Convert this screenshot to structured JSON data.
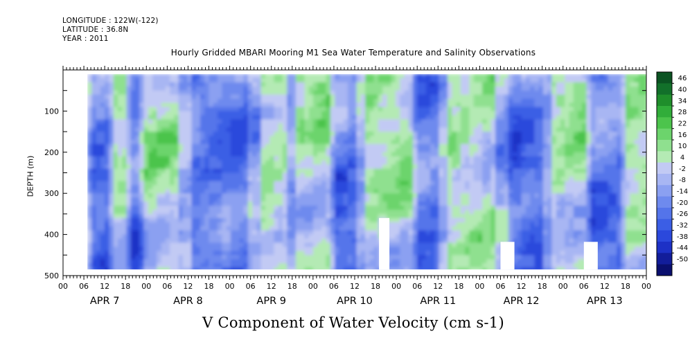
{
  "header": {
    "longitude": "LONGITUDE : 122W(-122)",
    "latitude": "LATITUDE : 36.8N",
    "year": "YEAR : 2011"
  },
  "chart_data": {
    "type": "heatmap",
    "title": "Hourly Gridded MBARI Mooring M1 Sea Water Temperature and Salinity Observations",
    "xlabel": "V Component of Water Velocity (cm s-1)",
    "ylabel": "DEPTH (m)",
    "y_axis": {
      "range": [
        0,
        500
      ],
      "inverted": true,
      "ticks": [
        100,
        200,
        300,
        400,
        500
      ]
    },
    "x_axis": {
      "days": [
        "APR  7",
        "APR  8",
        "APR  9",
        "APR 10",
        "APR 11",
        "APR 12",
        "APR 13"
      ],
      "hour_labels": [
        "00",
        "06",
        "12",
        "18",
        "00",
        "06",
        "12",
        "18",
        "00",
        "06",
        "12",
        "18",
        "00",
        "06",
        "12",
        "18",
        "00",
        "06",
        "12",
        "18",
        "00",
        "06",
        "12",
        "18",
        "00",
        "06",
        "12",
        "18",
        "00"
      ],
      "start": "2011-04-07T00:00",
      "end": "2011-04-14T00:00"
    },
    "data_extent": {
      "start_hour": 7,
      "end_hour": 168,
      "depth_min": 10,
      "depth_max": 485
    },
    "colorbar": {
      "levels": [
        -50,
        -44,
        -38,
        -32,
        -26,
        -20,
        -14,
        -8,
        -2,
        4,
        10,
        16,
        22,
        28,
        34,
        40,
        46
      ],
      "label_values": [
        46,
        40,
        34,
        28,
        22,
        16,
        10,
        4,
        -2,
        -8,
        -14,
        -20,
        -26,
        -32,
        -38,
        -44,
        -50
      ],
      "colors": [
        "#0a0f6e",
        "#121d9a",
        "#1d31c6",
        "#2b48dc",
        "#3b5ee5",
        "#5474ea",
        "#6e8aee",
        "#8ba0f1",
        "#a8b6f3",
        "#c2caf4",
        "#b4eab4",
        "#8fe08f",
        "#6cd46c",
        "#4cc44c",
        "#31ad3a",
        "#1f8e2b",
        "#12702a",
        "#0b5322"
      ]
    },
    "features": {
      "positive_bands_hours": [
        [
          14,
          18
        ],
        [
          22,
          32
        ],
        [
          56,
          64
        ],
        [
          66,
          76
        ],
        [
          86,
          100
        ],
        [
          110,
          124
        ],
        [
          140,
          150
        ],
        [
          162,
          168
        ]
      ],
      "negative_bands_hours": [
        [
          8,
          13
        ],
        [
          19,
          22
        ],
        [
          36,
          52
        ],
        [
          78,
          84
        ],
        [
          102,
          108
        ],
        [
          128,
          138
        ],
        [
          152,
          160
        ]
      ],
      "gaps": [
        {
          "start_hour": 0,
          "end_hour": 7,
          "depth_min": 0,
          "depth_max": 500
        },
        {
          "start_hour": 91,
          "end_hour": 94,
          "depth_min": 360,
          "depth_max": 485
        },
        {
          "start_hour": 126,
          "end_hour": 130,
          "depth_min": 418,
          "depth_max": 485
        },
        {
          "start_hour": 150,
          "end_hour": 154,
          "depth_min": 418,
          "depth_max": 485
        }
      ]
    }
  }
}
